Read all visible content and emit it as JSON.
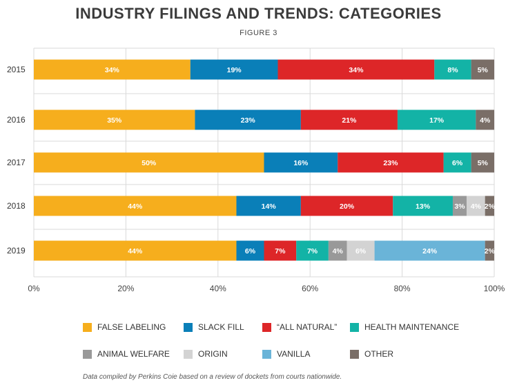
{
  "chart_data": {
    "type": "bar",
    "orientation": "horizontal",
    "stacked": true,
    "title": "INDUSTRY FILINGS AND TRENDS: CATEGORIES",
    "subtitle": "FIGURE 3",
    "categories": [
      "2015",
      "2016",
      "2017",
      "2018",
      "2019"
    ],
    "xlim": [
      0,
      100
    ],
    "x_ticks": [
      "0%",
      "20%",
      "40%",
      "60%",
      "80%",
      "100%"
    ],
    "grid": true,
    "legend_position": "bottom",
    "series": [
      {
        "name": "FALSE LABELING",
        "color": "#F6AE1D",
        "values": [
          34,
          35,
          50,
          44,
          44
        ],
        "labels": [
          "34%",
          "35%",
          "50%",
          "44%",
          "44%"
        ]
      },
      {
        "name": "SLACK FILL",
        "color": "#0A7FB8",
        "values": [
          19,
          23,
          16,
          14,
          6
        ],
        "labels": [
          "19%",
          "23%",
          "16%",
          "14%",
          "6%"
        ]
      },
      {
        "name": "“ALL NATURAL”",
        "color": "#DD2628",
        "values": [
          34,
          21,
          23,
          20,
          7
        ],
        "labels": [
          "34%",
          "21%",
          "23%",
          "20%",
          "7%"
        ]
      },
      {
        "name": "HEALTH MAINTENANCE",
        "color": "#13B3A6",
        "values": [
          8,
          17,
          6,
          13,
          7
        ],
        "labels": [
          "8%",
          "17%",
          "6%",
          "13%",
          "7%"
        ]
      },
      {
        "name": "ANIMAL WELFARE",
        "color": "#999999",
        "values": [
          0,
          0,
          0,
          3,
          4
        ],
        "labels": [
          "",
          "",
          "",
          "3%",
          "4%"
        ]
      },
      {
        "name": "ORIGIN",
        "color": "#D3D3D3",
        "values": [
          0,
          0,
          0,
          4,
          6
        ],
        "labels": [
          "",
          "",
          "",
          "4%",
          "6%"
        ]
      },
      {
        "name": "VANILLA",
        "color": "#6AB4D8",
        "values": [
          0,
          0,
          0,
          0,
          24
        ],
        "labels": [
          "",
          "",
          "",
          "",
          "24%"
        ]
      },
      {
        "name": "OTHER",
        "color": "#7A6E67",
        "values": [
          5,
          4,
          5,
          2,
          2
        ],
        "labels": [
          "5%",
          "4%",
          "5%",
          "2%",
          "2%"
        ]
      }
    ]
  },
  "footnote": "Data compiled by Perkins Coie based on a review of dockets from courts nationwide."
}
